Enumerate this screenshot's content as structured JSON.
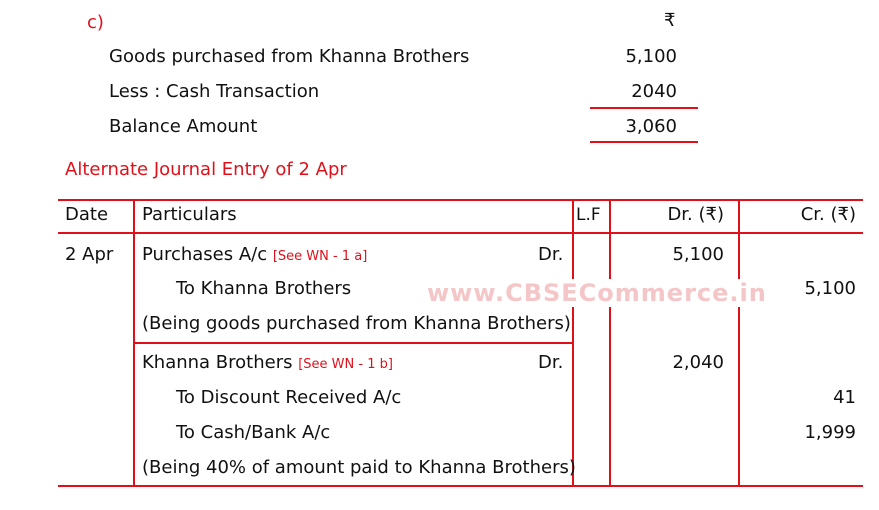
{
  "calc": {
    "label": "c)",
    "currency": "₹",
    "rows": [
      {
        "label": "Goods purchased from Khanna Brothers",
        "value": "5,100"
      },
      {
        "label": "Less :   Cash Transaction",
        "value": "2040"
      },
      {
        "label": "Balance Amount",
        "value": "3,060"
      }
    ]
  },
  "heading": "Alternate Journal Entry of 2 Apr",
  "table": {
    "headers": [
      "Date",
      "Particulars",
      "L.F",
      "Dr. (₹)",
      "Cr. (₹)"
    ],
    "date": "2 Apr",
    "entry1": {
      "debit": "Purchases A/c",
      "ref": "[See WN - 1 a]",
      "dr": "Dr.",
      "dr_amount": "5,100",
      "credit": "To Khanna Brothers",
      "cr_amount": "5,100",
      "narration": "(Being goods purchased from Khanna Brothers)"
    },
    "entry2": {
      "debit": "Khanna Brothers",
      "ref": "[See WN - 1 b]",
      "dr": "Dr.",
      "dr_amount": "2,040",
      "credit1": "To Discount Received A/c",
      "cr1_amount": "41",
      "credit2": "To Cash/Bank A/c",
      "cr2_amount": "1,999",
      "narration": "(Being 40% of amount paid to Khanna Brothers)"
    }
  },
  "watermark": "www.CBSECommerce.in",
  "colors": {
    "accent": "#e0101a"
  }
}
